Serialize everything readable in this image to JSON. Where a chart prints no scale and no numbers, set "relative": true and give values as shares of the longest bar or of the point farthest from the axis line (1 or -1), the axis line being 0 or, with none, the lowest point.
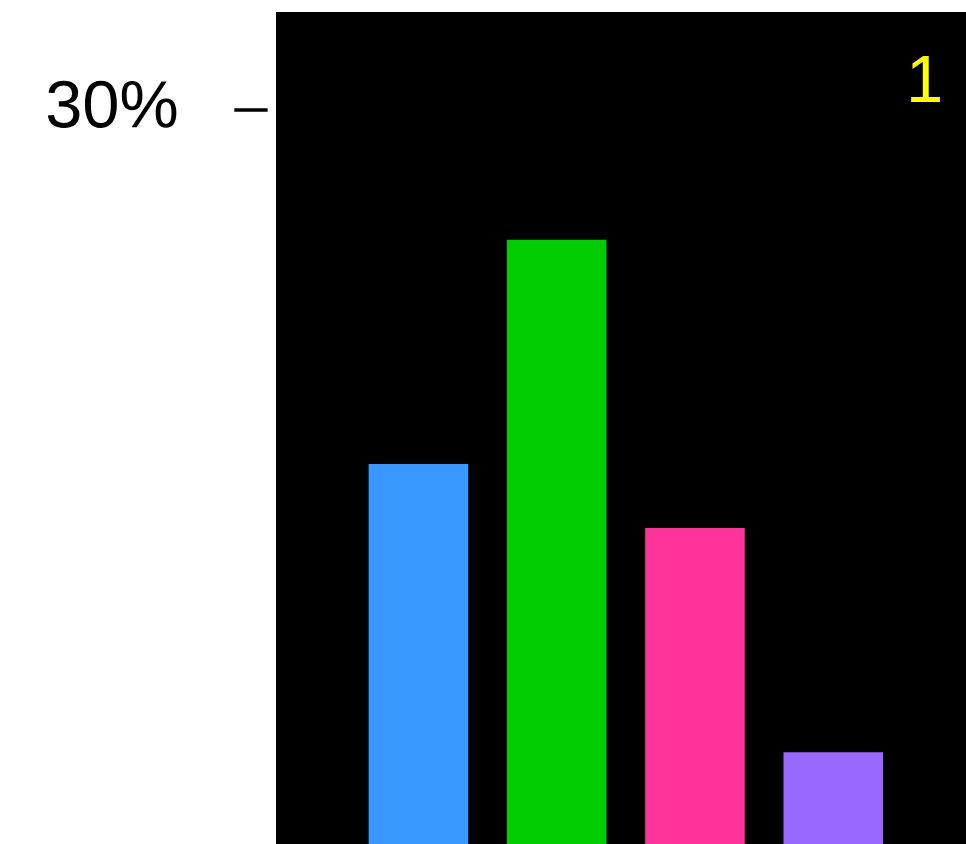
{
  "chart_data": {
    "type": "bar",
    "relative": true,
    "categories": [
      null,
      null,
      null,
      null
    ],
    "values": [
      0.629,
      1,
      0.523,
      0.152
    ],
    "colors": [
      "#3898ff",
      "#00cc00",
      "#ff3399",
      "#9966ff"
    ],
    "annotations": [
      "30%",
      "1"
    ],
    "grid": false,
    "legend": false
  }
}
